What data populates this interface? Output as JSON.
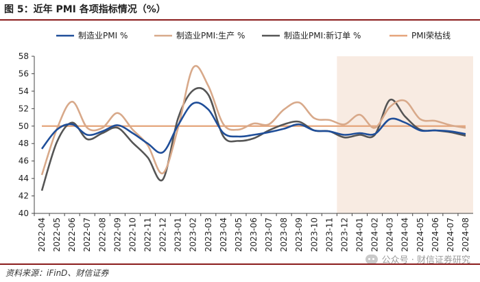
{
  "figure": {
    "title": "图 5：近年 PMI 各项指标情况（%）",
    "source": "资料来源：iFinD、财信证券",
    "watermark": "公众号 · 财信证券研究"
  },
  "chart_data": {
    "type": "line",
    "categories": [
      "2022-04",
      "2022-05",
      "2022-06",
      "2022-07",
      "2022-08",
      "2022-09",
      "2022-10",
      "2022-11",
      "2022-12",
      "2023-01",
      "2023-02",
      "2023-03",
      "2023-04",
      "2023-05",
      "2023-06",
      "2023-07",
      "2023-08",
      "2023-09",
      "2023-10",
      "2023-11",
      "2023-12",
      "2024-01",
      "2024-02",
      "2024-03",
      "2024-04",
      "2024-05",
      "2024-06",
      "2024-07",
      "2024-08"
    ],
    "ylim": [
      40,
      58
    ],
    "yticks": [
      40,
      42,
      44,
      46,
      48,
      50,
      52,
      54,
      56,
      58
    ],
    "shaded_region": [
      "2023-12",
      "2024-08"
    ],
    "series": [
      {
        "name": "制造业PMI %",
        "color": "#1f4e99",
        "values": [
          47.4,
          49.6,
          50.2,
          49.0,
          49.4,
          50.1,
          49.2,
          48.0,
          47.0,
          50.1,
          52.6,
          51.9,
          49.2,
          48.8,
          49.0,
          49.3,
          49.7,
          50.2,
          49.5,
          49.4,
          49.0,
          49.2,
          49.1,
          50.8,
          50.4,
          49.5,
          49.5,
          49.4,
          49.1
        ]
      },
      {
        "name": "制造业PMI:生产 %",
        "color": "#d8a98a",
        "values": [
          44.4,
          49.7,
          52.8,
          49.8,
          49.8,
          51.5,
          49.6,
          47.8,
          44.6,
          49.8,
          56.7,
          54.6,
          50.2,
          49.6,
          50.3,
          50.2,
          51.9,
          52.7,
          50.9,
          50.7,
          50.2,
          51.3,
          49.8,
          52.2,
          52.9,
          50.8,
          50.6,
          50.1,
          49.8
        ]
      },
      {
        "name": "制造业PMI:新订单 %",
        "color": "#555555",
        "values": [
          42.6,
          48.2,
          50.4,
          48.5,
          49.2,
          49.8,
          48.1,
          46.4,
          43.9,
          50.9,
          54.1,
          53.6,
          48.8,
          48.3,
          48.6,
          49.5,
          50.2,
          50.5,
          49.5,
          49.4,
          48.7,
          49.0,
          49.0,
          53.0,
          51.1,
          49.6,
          49.5,
          49.3,
          48.9
        ]
      },
      {
        "name": "PMI荣枯线",
        "color": "#e5a47a",
        "values": [
          50,
          50,
          50,
          50,
          50,
          50,
          50,
          50,
          50,
          50,
          50,
          50,
          50,
          50,
          50,
          50,
          50,
          50,
          50,
          50,
          50,
          50,
          50,
          50,
          50,
          50,
          50,
          50,
          50
        ]
      }
    ]
  }
}
